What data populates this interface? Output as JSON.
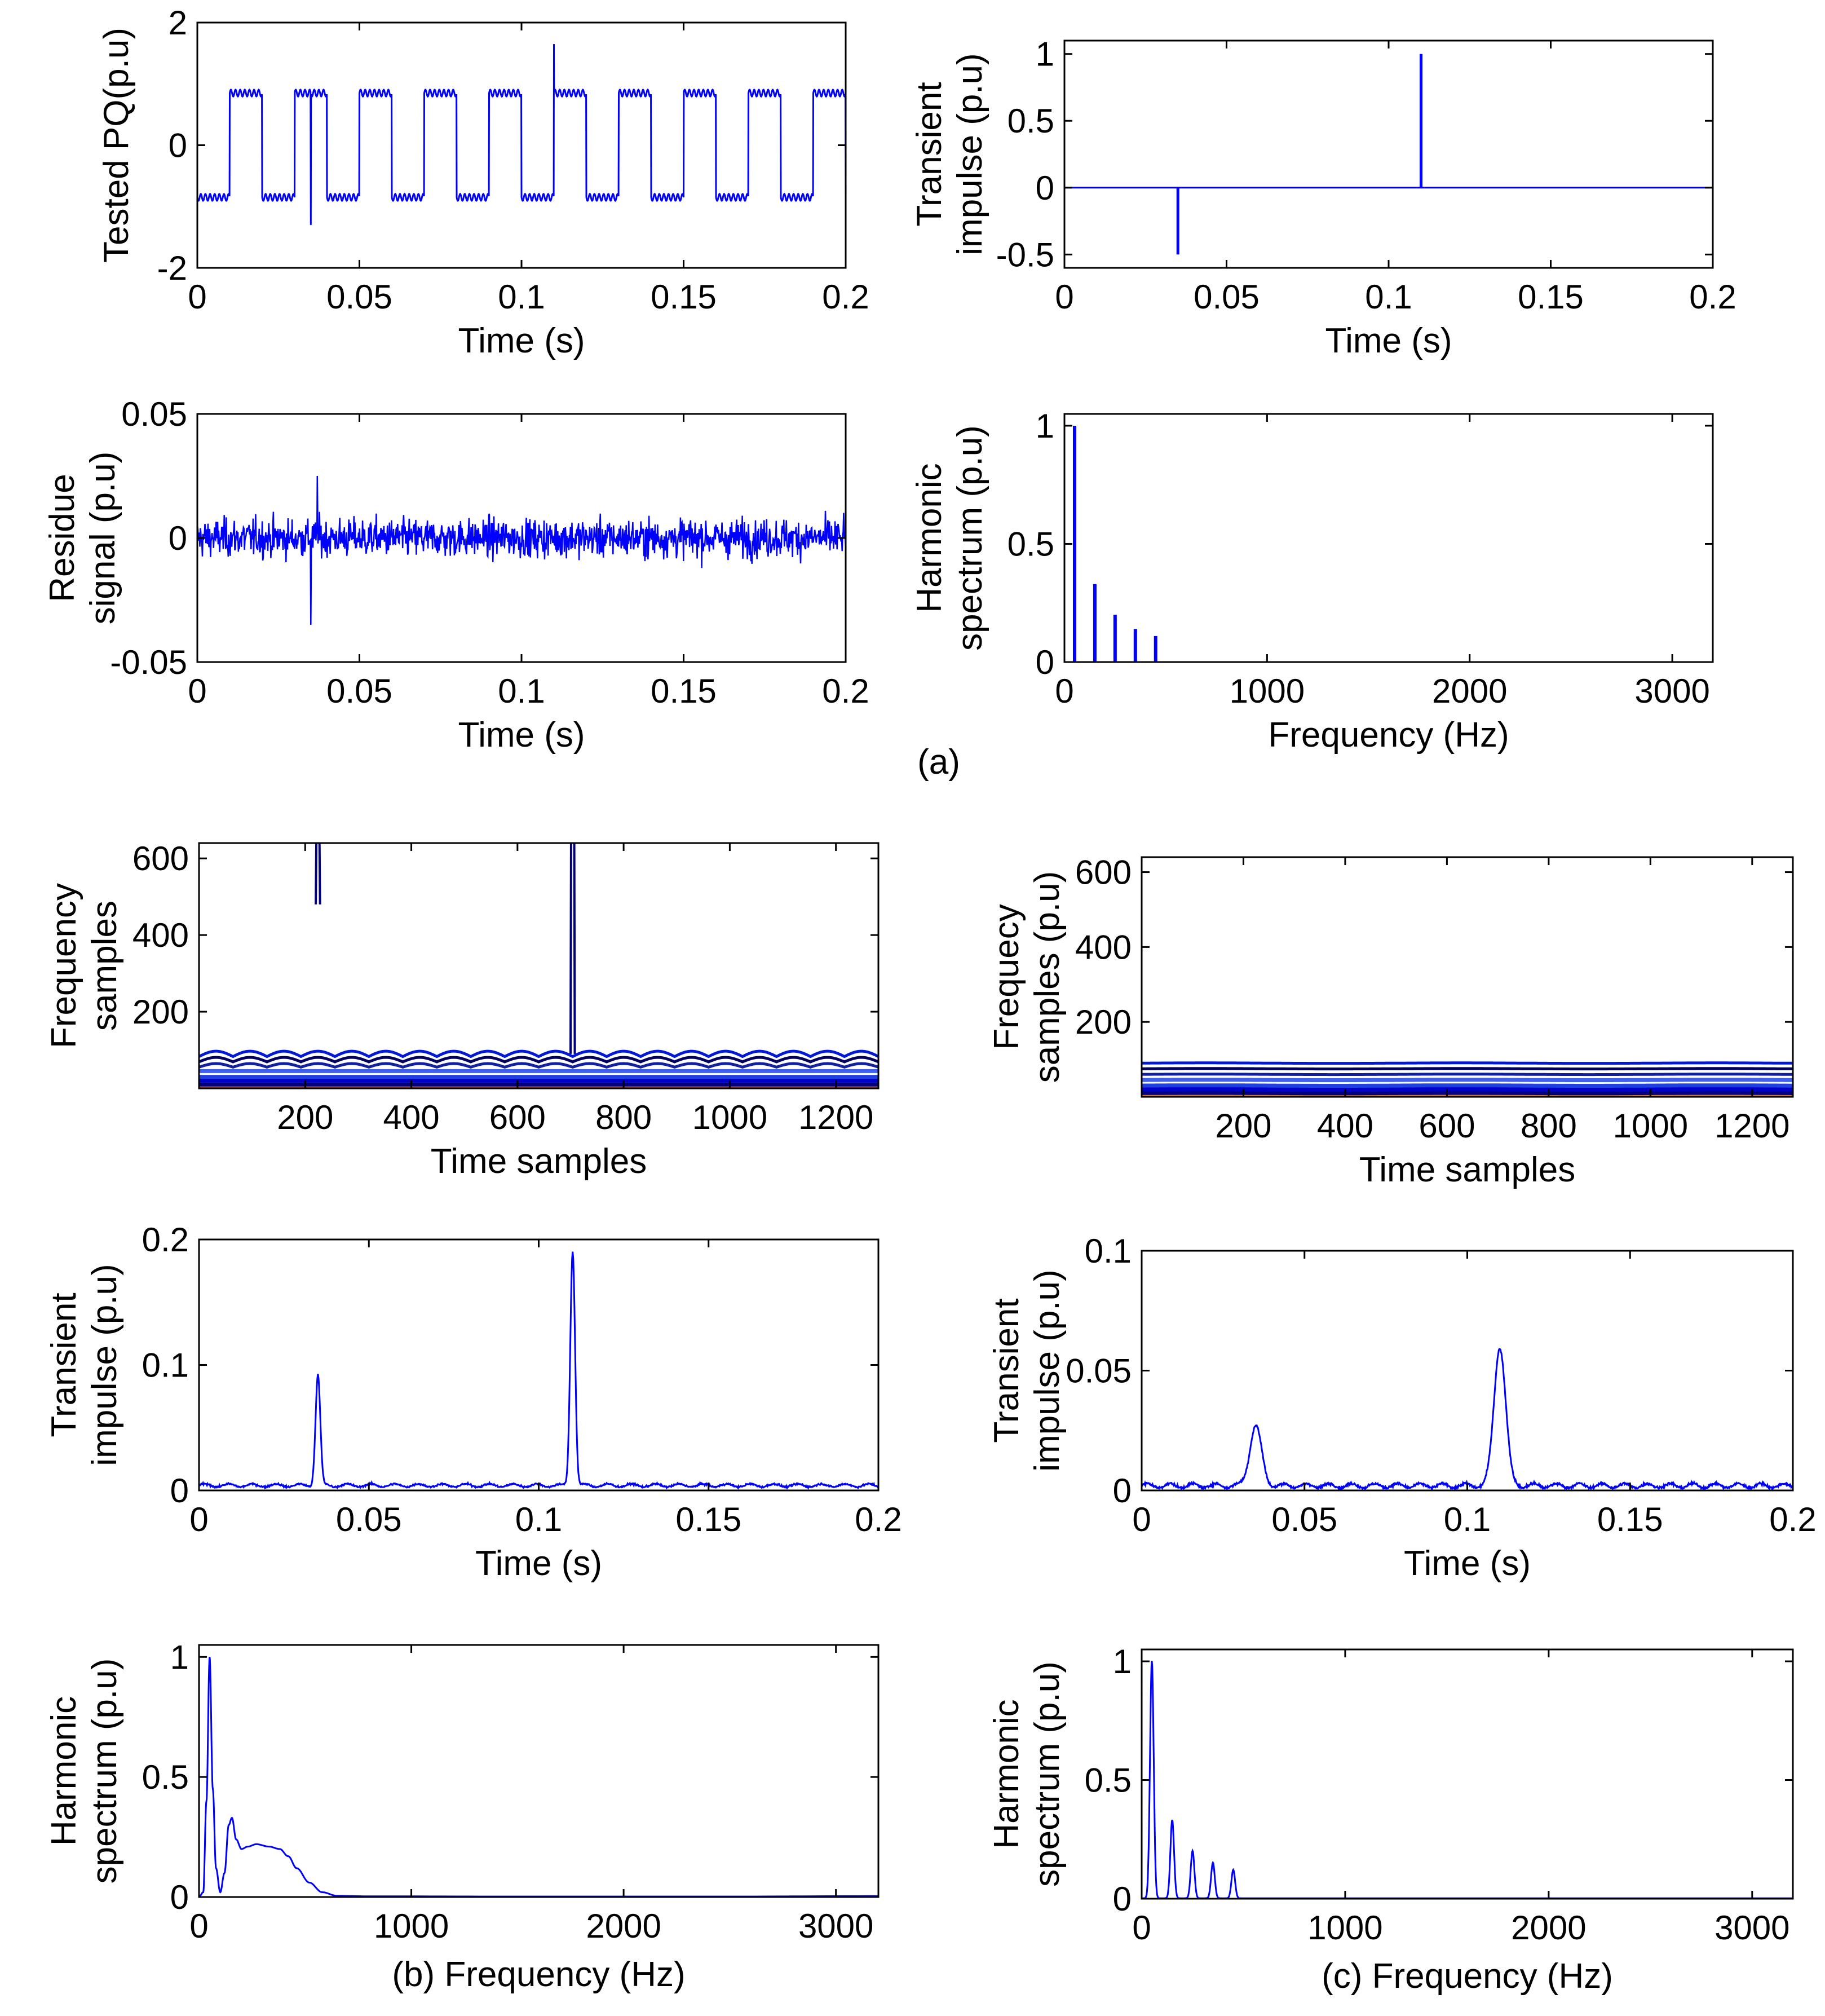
{
  "chart_data": [
    {
      "id": "a1",
      "type": "line",
      "ylabel_lines": [
        "Tested PQ(p.u)"
      ],
      "xlabel": "Time (s)",
      "xlim": [
        0,
        0.2
      ],
      "ylim": [
        -2,
        2
      ],
      "xticks": [
        0,
        0.05,
        0.1,
        0.15,
        0.2
      ],
      "xtick_labels": [
        "0",
        "0.05",
        "0.1",
        "0.15",
        "0.2"
      ],
      "yticks": [
        -2,
        0,
        2
      ],
      "ytick_labels": [
        "-2",
        "0",
        "2"
      ],
      "series": [
        {
          "name": "tested-pq",
          "kind": "square_wave_with_harmonics",
          "fundamental_hz": 50,
          "high_level": 0.85,
          "low_level": -0.85,
          "ripple": 0.08,
          "transients": [
            {
              "t": 0.035,
              "value": -1.3
            },
            {
              "t": 0.11,
              "value": 1.65
            }
          ]
        }
      ]
    },
    {
      "id": "a2",
      "type": "line",
      "ylabel_lines": [
        "Transient",
        "impulse (p.u)"
      ],
      "xlabel": "Time (s)",
      "xlim": [
        0,
        0.2
      ],
      "ylim": [
        -0.6,
        1.1
      ],
      "xticks": [
        0,
        0.05,
        0.1,
        0.15,
        0.2
      ],
      "xtick_labels": [
        "0",
        "0.05",
        "0.1",
        "0.15",
        "0.2"
      ],
      "yticks": [
        -0.5,
        0,
        0.5,
        1
      ],
      "ytick_labels": [
        "-0.5",
        "0",
        "0.5",
        "1"
      ],
      "series": [
        {
          "name": "impulse",
          "kind": "spikes",
          "baseline": 0,
          "spikes": [
            {
              "t": 0.035,
              "value": -0.5
            },
            {
              "t": 0.11,
              "value": 1.0
            }
          ]
        }
      ]
    },
    {
      "id": "a3",
      "type": "line",
      "ylabel_lines": [
        "Residue",
        "signal (p.u)"
      ],
      "xlabel": "Time (s)",
      "xlim": [
        0,
        0.2
      ],
      "ylim": [
        -0.05,
        0.05
      ],
      "xticks": [
        0,
        0.05,
        0.1,
        0.15,
        0.2
      ],
      "xtick_labels": [
        "0",
        "0.05",
        "0.1",
        "0.15",
        "0.2"
      ],
      "yticks": [
        -0.05,
        0,
        0.05
      ],
      "ytick_labels": [
        "-0.05",
        "0",
        "0.05"
      ],
      "series": [
        {
          "name": "residue",
          "kind": "noise",
          "amplitude": 0.009,
          "samples": 1280,
          "outliers": [
            {
              "t": 0.035,
              "value": -0.035
            },
            {
              "t": 0.037,
              "value": 0.025
            }
          ]
        }
      ]
    },
    {
      "id": "a4",
      "type": "bar",
      "ylabel_lines": [
        "Harmonic",
        "spectrum (p.u)"
      ],
      "xlabel": "Frequency (Hz)",
      "xlim": [
        0,
        3200
      ],
      "ylim": [
        0,
        1.05
      ],
      "xticks": [
        0,
        1000,
        2000,
        3000
      ],
      "xtick_labels": [
        "0",
        "1000",
        "2000",
        "3000"
      ],
      "yticks": [
        0,
        0.5,
        1
      ],
      "ytick_labels": [
        "0",
        "0.5",
        "1"
      ],
      "series": [
        {
          "name": "harmonics",
          "kind": "lines",
          "x": [
            50,
            150,
            250,
            350,
            450
          ],
          "values": [
            1.0,
            0.33,
            0.2,
            0.14,
            0.11
          ]
        }
      ]
    },
    {
      "id": "b1",
      "type": "heatmap",
      "ylabel_lines": [
        "Frequency",
        "samples"
      ],
      "xlabel": "Time samples",
      "xlim": [
        0,
        1280
      ],
      "ylim": [
        0,
        640
      ],
      "xticks": [
        200,
        400,
        600,
        800,
        1000,
        1200
      ],
      "xtick_labels": [
        "200",
        "400",
        "600",
        "800",
        "1000",
        "1200"
      ],
      "yticks": [
        200,
        400,
        600
      ],
      "ytick_labels": [
        "200",
        "400",
        "600"
      ],
      "series": [
        {
          "name": "st-contour",
          "kind": "contour_bands",
          "bands": [
            10,
            20,
            30,
            45,
            60,
            75,
            90
          ],
          "ripple_period": 64,
          "spikes": [
            {
              "x": 224,
              "y_from": 480,
              "y_to": 640
            },
            {
              "x": 704,
              "y_from": 90,
              "y_to": 640
            }
          ]
        }
      ]
    },
    {
      "id": "c1",
      "type": "heatmap",
      "ylabel_lines": [
        "Frequecy",
        "samples (p.u)"
      ],
      "xlabel": "Time samples",
      "xlim": [
        0,
        1280
      ],
      "ylim": [
        0,
        640
      ],
      "xticks": [
        200,
        400,
        600,
        800,
        1000,
        1200
      ],
      "xtick_labels": [
        "200",
        "400",
        "600",
        "800",
        "1000",
        "1200"
      ],
      "yticks": [
        200,
        400,
        600
      ],
      "ytick_labels": [
        "200",
        "400",
        "600"
      ],
      "series": [
        {
          "name": "fdst-contour",
          "kind": "contour_bands",
          "bands": [
            10,
            20,
            30,
            45,
            60,
            75,
            90
          ],
          "ripple_period": 0,
          "spikes": []
        }
      ]
    },
    {
      "id": "b2",
      "type": "line",
      "ylabel_lines": [
        "Transient",
        "impulse (p.u)"
      ],
      "xlabel": "Time (s)",
      "xlim": [
        0,
        0.2
      ],
      "ylim": [
        0,
        0.2
      ],
      "xticks": [
        0,
        0.05,
        0.1,
        0.15,
        0.2
      ],
      "xtick_labels": [
        "0",
        "0.05",
        "0.1",
        "0.15",
        "0.2"
      ],
      "yticks": [
        0,
        0.1,
        0.2
      ],
      "ytick_labels": [
        "0",
        "0.1",
        "0.2"
      ],
      "series": [
        {
          "name": "impulse-st",
          "kind": "gaussian_peaks",
          "floor": 0.004,
          "noise": 0.002,
          "peaks": [
            {
              "t": 0.035,
              "value": 0.088,
              "width": 0.0007
            },
            {
              "t": 0.11,
              "value": 0.187,
              "width": 0.0007
            }
          ]
        }
      ]
    },
    {
      "id": "c2",
      "type": "line",
      "ylabel_lines": [
        "Transient",
        "impulse (p.u)"
      ],
      "xlabel": "Time (s)",
      "xlim": [
        0,
        0.2
      ],
      "ylim": [
        0,
        0.1
      ],
      "xticks": [
        0,
        0.05,
        0.1,
        0.15,
        0.2
      ],
      "xtick_labels": [
        "0",
        "0.05",
        "0.1",
        "0.15",
        "0.2"
      ],
      "yticks": [
        0,
        0.05,
        0.1
      ],
      "ytick_labels": [
        "0",
        "0.05",
        "0.1"
      ],
      "series": [
        {
          "name": "impulse-fdst",
          "kind": "gaussian_peaks",
          "floor": 0.002,
          "noise": 0.0015,
          "peaks": [
            {
              "t": 0.035,
              "value": 0.025,
              "width": 0.0018
            },
            {
              "t": 0.11,
              "value": 0.058,
              "width": 0.0018
            }
          ]
        }
      ]
    },
    {
      "id": "b3",
      "type": "line",
      "ylabel_lines": [
        "Harmonic",
        "spectrum (p.u)"
      ],
      "xlabel": "Frequency (Hz)",
      "caption": "(b)",
      "xlim": [
        0,
        3200
      ],
      "ylim": [
        0,
        1.05
      ],
      "xticks": [
        0,
        1000,
        2000,
        3000
      ],
      "xtick_labels": [
        "0",
        "1000",
        "2000",
        "3000"
      ],
      "yticks": [
        0,
        0.5,
        1
      ],
      "ytick_labels": [
        "0",
        "0.5",
        "1"
      ],
      "series": [
        {
          "name": "spectrum-st",
          "kind": "smooth",
          "points": [
            [
              0,
              0
            ],
            [
              20,
              0.02
            ],
            [
              35,
              0.4
            ],
            [
              50,
              1.0
            ],
            [
              65,
              0.45
            ],
            [
              80,
              0.12
            ],
            [
              100,
              0.02
            ],
            [
              120,
              0.1
            ],
            [
              140,
              0.3
            ],
            [
              155,
              0.33
            ],
            [
              175,
              0.24
            ],
            [
              200,
              0.2
            ],
            [
              230,
              0.21
            ],
            [
              270,
              0.22
            ],
            [
              330,
              0.21
            ],
            [
              380,
              0.2
            ],
            [
              420,
              0.17
            ],
            [
              460,
              0.12
            ],
            [
              520,
              0.06
            ],
            [
              580,
              0.02
            ],
            [
              650,
              0.005
            ],
            [
              800,
              0.003
            ],
            [
              1500,
              0.002
            ],
            [
              2500,
              0.002
            ],
            [
              3200,
              0.004
            ]
          ]
        }
      ]
    },
    {
      "id": "c3",
      "type": "line",
      "ylabel_lines": [
        "Harmonic",
        "spectrum (p.u)"
      ],
      "xlabel": "Frequency (Hz)",
      "caption": "(c)",
      "xlim": [
        0,
        3200
      ],
      "ylim": [
        0,
        1.05
      ],
      "xticks": [
        0,
        1000,
        2000,
        3000
      ],
      "xtick_labels": [
        "0",
        "1000",
        "2000",
        "3000"
      ],
      "yticks": [
        0,
        0.5,
        1
      ],
      "ytick_labels": [
        "0",
        "0.5",
        "1"
      ],
      "series": [
        {
          "name": "spectrum-fdst",
          "kind": "peaks",
          "width": 9,
          "x": [
            50,
            150,
            250,
            350,
            450
          ],
          "values": [
            1.0,
            0.33,
            0.2,
            0.15,
            0.12
          ]
        }
      ]
    }
  ],
  "figure": {
    "caption_a": "(a)",
    "caption_b": "(b)",
    "caption_c": "(c)",
    "line_color": "#0000FF",
    "contour_colors": [
      "#000080",
      "#0000CC",
      "#2040E0",
      "#4060F0",
      "#1020A0",
      "#000060",
      "#0018D8"
    ],
    "contour_base_colors": [
      "#D04020",
      "#E08030",
      "#30A0D0"
    ]
  }
}
